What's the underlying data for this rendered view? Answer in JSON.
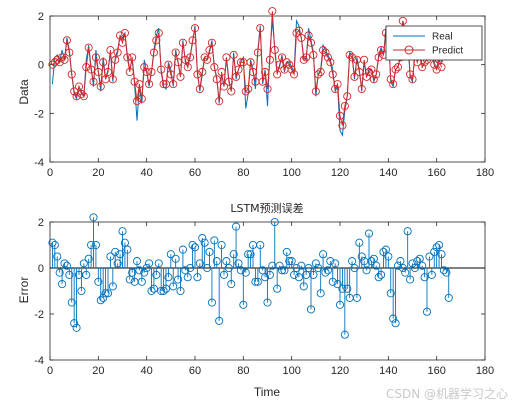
{
  "watermark": "CSDN @机器学习之心",
  "chart_data": [
    {
      "type": "line",
      "title": "",
      "xlabel": "",
      "ylabel": "Data",
      "xlim": [
        0,
        180
      ],
      "ylim": [
        -4,
        2
      ],
      "xticks": [
        0,
        20,
        40,
        60,
        80,
        100,
        120,
        140,
        160,
        180
      ],
      "yticks": [
        -4,
        -2,
        0,
        2
      ],
      "legend_position": "top-right",
      "colors": {
        "Real": "#0072BD",
        "Predict": "#D62728"
      },
      "series": [
        {
          "name": "Real",
          "marker": "none",
          "y": [
            -0.8,
            0.3,
            0.4,
            0.1,
            0.6,
            0.2,
            1.1,
            0.6,
            -0.4,
            -1.2,
            -1.4,
            -0.9,
            -1.1,
            -1.3,
            0.2,
            0.8,
            -0.1,
            -0.9,
            0.6,
            -0.3,
            -1.1,
            0.3,
            -0.6,
            -0.2,
            0.5,
            -0.7,
            0.3,
            0.6,
            1.2,
            1.1,
            1.3,
            0.4,
            -0.2,
            0.2,
            -0.8,
            -2.3,
            -0.9,
            -1.6,
            0.2,
            -0.3,
            -0.9,
            -0.3,
            0.6,
            1.2,
            1.5,
            -0.3,
            -0.9,
            -1.0,
            0.1,
            -0.2,
            -0.9,
            0.6,
            0.1,
            -0.5,
            1.0,
            0.1,
            -0.1,
            0.4,
            0.9,
            1.6,
            -0.3,
            -1.1,
            -0.4,
            0.3,
            0.2,
            0.5,
            1.0,
            -0.1,
            -0.5,
            -1.6,
            -0.4,
            -0.9,
            0.3,
            -0.6,
            -1.1,
            0.5,
            -0.6,
            -0.2,
            0.1,
            0.3,
            -1.8,
            -1.2,
            0.2,
            -0.2,
            -1.0,
            0.6,
            1.6,
            -0.8,
            -0.2,
            -1.7,
            0.5,
            1.8,
            0.7,
            -0.3,
            -0.1,
            0.4,
            -0.3,
            0.1,
            0.1,
            -0.1,
            -0.3,
            1.8,
            1.6,
            1.1,
            0.3,
            0.2,
            1.5,
            1.0,
            0.5,
            -1.3,
            -0.4,
            -0.2,
            0.8,
            0.6,
            0.4,
            0.2,
            -0.2,
            -1.1,
            -0.9,
            -2.7,
            -2.9,
            -1.9,
            -1.3,
            0.5,
            0.4,
            -0.6,
            0.3,
            -0.2,
            -1.1,
            0.1,
            -0.5,
            -0.2,
            -0.2,
            -0.7,
            -0.4,
            0.4,
            0.7,
            0.4,
            1.5,
            1.4,
            -0.7,
            -0.9,
            -0.2,
            -0.1,
            0.4,
            1.8,
            1.4,
            1.2,
            -0.5,
            -0.7,
            0.5,
            0.2,
            0.8,
            -0.1,
            0.1,
            0.2,
            0.6,
            0.5,
            0.1,
            -0.2,
            0.4,
            0.1
          ]
        },
        {
          "name": "Predict",
          "marker": "circle",
          "y": [
            0.0,
            0.1,
            0.2,
            0.1,
            0.3,
            0.2,
            1.0,
            0.5,
            -0.4,
            -1.1,
            -1.3,
            -0.9,
            -1.2,
            -1.3,
            -0.1,
            0.7,
            -0.2,
            -0.7,
            0.3,
            -0.3,
            -0.9,
            0.1,
            -0.6,
            -0.3,
            0.6,
            -0.6,
            0.2,
            0.5,
            1.2,
            0.9,
            1.3,
            0.3,
            -0.3,
            0.3,
            -0.7,
            -1.5,
            -0.8,
            -1.4,
            -0.1,
            -0.3,
            -0.8,
            -0.3,
            0.5,
            1.0,
            1.3,
            -0.2,
            -0.8,
            -0.8,
            0.0,
            -0.4,
            -0.8,
            0.5,
            0.1,
            -0.5,
            0.9,
            0.2,
            -0.1,
            0.3,
            1.0,
            1.5,
            -0.4,
            -1.0,
            -0.3,
            0.3,
            0.2,
            0.6,
            0.9,
            -0.1,
            -0.6,
            -1.5,
            -0.3,
            -0.9,
            0.3,
            -0.7,
            -1.1,
            0.4,
            -0.5,
            -0.2,
            0.1,
            0.1,
            -1.1,
            -1.0,
            0.1,
            -0.3,
            -0.7,
            0.5,
            1.5,
            -0.7,
            -0.3,
            -1.0,
            0.2,
            2.2,
            0.6,
            -0.4,
            0.0,
            0.3,
            -0.2,
            0.1,
            0.0,
            -0.2,
            -0.4,
            1.3,
            1.4,
            1.1,
            0.2,
            0.3,
            1.2,
            0.9,
            0.4,
            -1.1,
            -0.4,
            -0.3,
            0.6,
            0.5,
            0.3,
            0.1,
            -0.4,
            -1.0,
            -0.8,
            -2.1,
            -2.5,
            -1.7,
            -1.3,
            0.4,
            0.3,
            -0.5,
            0.2,
            -0.3,
            -1.0,
            0.2,
            -0.5,
            -0.3,
            -0.2,
            -0.6,
            -0.4,
            0.3,
            0.6,
            0.4,
            1.3,
            1.2,
            -0.6,
            -0.8,
            -0.2,
            -0.1,
            0.3,
            1.8,
            1.3,
            1.2,
            -0.4,
            -0.6,
            0.4,
            0.1,
            0.6,
            -0.1,
            0.1,
            0.2,
            0.5,
            0.4,
            0.0,
            -0.2,
            0.2,
            -0.1
          ]
        }
      ]
    },
    {
      "type": "stem",
      "title": "LSTM预测误差",
      "xlabel": "Time",
      "ylabel": "Error",
      "xlim": [
        0,
        180
      ],
      "ylim": [
        -4,
        2
      ],
      "xticks": [
        0,
        20,
        40,
        60,
        80,
        100,
        120,
        140,
        160,
        180
      ],
      "yticks": [
        -4,
        -2,
        0,
        2
      ],
      "colors": {
        "stem": "#0072BD",
        "baseline": "#000000"
      },
      "series": [
        {
          "name": "",
          "y": [
            1.1,
            1.0,
            0.5,
            -0.2,
            -0.7,
            0.2,
            0.1,
            -0.3,
            -1.5,
            -2.4,
            -2.6,
            -0.3,
            -1.0,
            0.2,
            -0.3,
            0.4,
            1.0,
            2.2,
            1.0,
            -0.6,
            -1.4,
            -1.3,
            -1.1,
            -1.1,
            0.5,
            -0.8,
            0.7,
            0.2,
            0.6,
            1.6,
            1.1,
            0.8,
            -0.5,
            -0.2,
            -0.6,
            0.3,
            -0.1,
            -0.6,
            -0.2,
            0.0,
            0.2,
            -1.0,
            -0.9,
            -0.3,
            0.2,
            -1.0,
            -1.0,
            -0.9,
            -0.4,
            0.6,
            -0.8,
            0.4,
            -0.5,
            -1.0,
            0.8,
            -0.1,
            -0.4,
            0.0,
            1.0,
            0.9,
            -0.4,
            0.2,
            1.3,
            1.1,
            0.0,
            0.7,
            -1.5,
            1.2,
            0.3,
            -2.3,
            1.0,
            -0.3,
            0.3,
            0.0,
            -0.7,
            0.6,
            1.8,
            0.2,
            -0.1,
            -1.6,
            -0.2,
            0.6,
            0.6,
            1.0,
            -0.6,
            -0.6,
            1.0,
            -0.1,
            -0.4,
            -1.5,
            -0.3,
            0.1,
            2.0,
            -0.9,
            0.1,
            -0.1,
            -0.1,
            0.7,
            0.3,
            0.3,
            -0.3,
            0.0,
            -0.4,
            0.1,
            -0.8,
            -0.3,
            0.0,
            -1.8,
            -0.3,
            0.2,
            0.0,
            -1.1,
            0.6,
            -0.2,
            -0.1,
            0.3,
            -0.6,
            0.2,
            -0.7,
            -1.6,
            -0.9,
            -2.9,
            -0.9,
            -1.3,
            0.3,
            0.0,
            -1.3,
            1.1,
            0.5,
            0.3,
            -0.1,
            1.5,
            0.3,
            0.4,
            0.1,
            -0.4,
            -0.3,
            0.7,
            0.8,
            0.5,
            -1.1,
            -2.2,
            -2.4,
            0.1,
            0.3,
            0.0,
            -0.2,
            1.6,
            -0.5,
            0.2,
            0.0,
            0.3,
            0.4,
            0.1,
            -0.4,
            -1.9,
            0.5,
            -0.3,
            0.7,
            0.9,
            1.0,
            0.6,
            -0.1,
            -0.2,
            -1.3
          ]
        }
      ]
    }
  ]
}
